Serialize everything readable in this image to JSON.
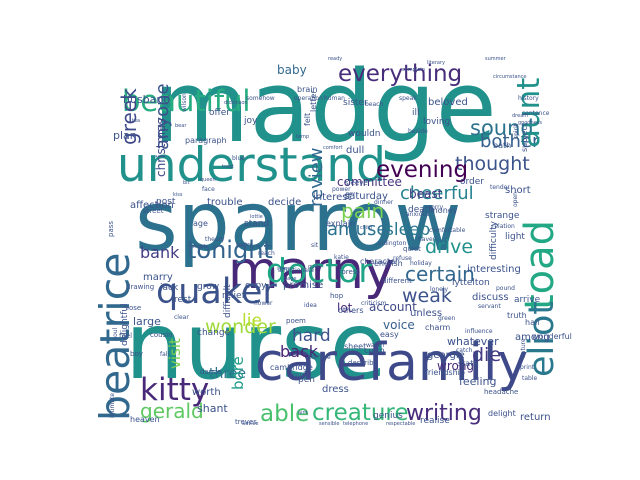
{
  "word_cloud": {
    "words": [
      {
        "text": "madge",
        "color": "#21918c"
      },
      {
        "text": "sparrow",
        "color": "#2c728e"
      },
      {
        "text": "nurse",
        "color": "#21918c"
      },
      {
        "text": "marny",
        "color": "#482878"
      },
      {
        "text": "understand",
        "color": "#21918c"
      },
      {
        "text": "carefamily",
        "color": "#3e4989"
      },
      {
        "text": "beautiful",
        "color": "#27ad81"
      },
      {
        "text": "beatrice",
        "color": "#31688e"
      },
      {
        "text": "kitty",
        "color": "#482878"
      },
      {
        "text": "everything",
        "color": "#472d7b"
      },
      {
        "text": "toad",
        "color": "#22a884"
      },
      {
        "text": "quaker",
        "color": "#3b528b"
      },
      {
        "text": "doctor",
        "color": "#20a486"
      },
      {
        "text": "eliot",
        "color": "#2a788e"
      },
      {
        "text": "tonight",
        "color": "#33638d"
      },
      {
        "text": "creature",
        "color": "#35b779"
      },
      {
        "text": "able",
        "color": "#4ac16d"
      },
      {
        "text": "writing",
        "color": "#472d7b"
      },
      {
        "text": "gerald",
        "color": "#5ec962"
      },
      {
        "text": "certain",
        "color": "#31688e"
      },
      {
        "text": "sound",
        "color": "#2c728e"
      },
      {
        "text": "thought",
        "color": "#3b528b"
      },
      {
        "text": "cheerful",
        "color": "#26828e"
      },
      {
        "text": "bother",
        "color": "#355f8d"
      },
      {
        "text": "evening",
        "color": "#440154"
      },
      {
        "text": "aunt",
        "color": "#21918c"
      },
      {
        "text": "greek",
        "color": "#3e4989"
      },
      {
        "text": "anyone",
        "color": "#3b528b"
      },
      {
        "text": "pain",
        "color": "#7ad151"
      },
      {
        "text": "amuse",
        "color": "#2c728e"
      },
      {
        "text": "sleep",
        "color": "#2a788e"
      },
      {
        "text": "drive",
        "color": "#21918c"
      },
      {
        "text": "weak",
        "color": "#3b528b"
      },
      {
        "text": "wonder",
        "color": "#a0da39"
      },
      {
        "text": "bank",
        "color": "#433e85"
      },
      {
        "text": "lie",
        "color": "#b5de2b"
      },
      {
        "text": "review",
        "color": "#31688e"
      },
      {
        "text": "hard",
        "color": "#3b528b"
      },
      {
        "text": "back",
        "color": "#482475"
      },
      {
        "text": "die",
        "color": "#443a83"
      },
      {
        "text": "visit",
        "color": "#7ad151"
      },
      {
        "text": "three",
        "color": "#2c728e"
      },
      {
        "text": "bore",
        "color": "#1f9e89"
      },
      {
        "text": "baby",
        "color": "#31688e"
      },
      {
        "text": "lot",
        "color": "#482878"
      },
      {
        "text": "account",
        "color": "#3e4989"
      },
      {
        "text": "voice",
        "color": "#355f8d"
      },
      {
        "text": "wrong",
        "color": "#472d7b"
      },
      {
        "text": "committee",
        "color": "#46327e"
      },
      {
        "text": "beast",
        "color": "#443a83"
      },
      {
        "text": "christmas",
        "color": "#3e4989"
      },
      {
        "text": "affection",
        "color": "#3b528b"
      },
      {
        "text": "trouble",
        "color": "#3b528b"
      },
      {
        "text": "decide",
        "color": "#3b528b"
      },
      {
        "text": "interest",
        "color": "#3b528b"
      },
      {
        "text": "saturday",
        "color": "#3b528b"
      },
      {
        "text": "husband",
        "color": "#3b528b"
      },
      {
        "text": "plan",
        "color": "#3b528b"
      },
      {
        "text": "large",
        "color": "#3b528b"
      },
      {
        "text": "marry",
        "color": "#3b528b"
      },
      {
        "text": "jack",
        "color": "#3b528b"
      },
      {
        "text": "grow",
        "color": "#3b528b"
      },
      {
        "text": "relief",
        "color": "#3b528b"
      },
      {
        "text": "copy",
        "color": "#3b528b"
      },
      {
        "text": "post",
        "color": "#3b528b"
      },
      {
        "text": "stand",
        "color": "#3b528b"
      },
      {
        "text": "promise",
        "color": "#3b528b"
      },
      {
        "text": "rest",
        "color": "#3b528b"
      },
      {
        "text": "difficult",
        "color": "#3b528b"
      },
      {
        "text": "change",
        "color": "#3b528b"
      },
      {
        "text": "delightful",
        "color": "#3b528b"
      },
      {
        "text": "shant",
        "color": "#3b528b"
      },
      {
        "text": "worth",
        "color": "#3b528b"
      },
      {
        "text": "treves",
        "color": "#3b528b"
      },
      {
        "text": "heaven",
        "color": "#3b528b"
      },
      {
        "text": "dress",
        "color": "#3b528b"
      },
      {
        "text": "pen",
        "color": "#3b528b"
      },
      {
        "text": "genius",
        "color": "#3b528b"
      },
      {
        "text": "realise",
        "color": "#3b528b"
      },
      {
        "text": "delight",
        "color": "#3b528b"
      },
      {
        "text": "return",
        "color": "#3b528b"
      },
      {
        "text": "feeling",
        "color": "#3b528b"
      },
      {
        "text": "georgie",
        "color": "#3b528b"
      },
      {
        "text": "whatever",
        "color": "#3b528b"
      },
      {
        "text": "among",
        "color": "#3b528b"
      },
      {
        "text": "hall",
        "color": "#3b528b"
      },
      {
        "text": "arrive",
        "color": "#3b528b"
      },
      {
        "text": "truth",
        "color": "#3b528b"
      },
      {
        "text": "wonderful",
        "color": "#3b528b"
      },
      {
        "text": "unless",
        "color": "#3b528b"
      },
      {
        "text": "discuss",
        "color": "#3b528b"
      },
      {
        "text": "lyttelton",
        "color": "#3b528b"
      },
      {
        "text": "interesting",
        "color": "#3b528b"
      },
      {
        "text": "light",
        "color": "#3b528b"
      },
      {
        "text": "difficulty",
        "color": "#3b528b"
      },
      {
        "text": "short",
        "color": "#3b528b"
      },
      {
        "text": "strange",
        "color": "#3b528b"
      },
      {
        "text": "bath",
        "color": "#3b528b"
      },
      {
        "text": "subject",
        "color": "#3b528b"
      },
      {
        "text": "order",
        "color": "#3b528b"
      },
      {
        "text": "death",
        "color": "#3b528b"
      },
      {
        "text": "money",
        "color": "#3b528b"
      },
      {
        "text": "quiet",
        "color": "#3b528b"
      },
      {
        "text": "crum",
        "color": "#3b528b"
      },
      {
        "text": "charm",
        "color": "#3b528b"
      },
      {
        "text": "easy",
        "color": "#3b528b"
      },
      {
        "text": "sheet",
        "color": "#3b528b"
      },
      {
        "text": "others",
        "color": "#3b528b"
      },
      {
        "text": "friendship",
        "color": "#3b528b"
      },
      {
        "text": "state",
        "color": "#3b528b"
      },
      {
        "text": "cambridge",
        "color": "#3b528b"
      },
      {
        "text": "explain",
        "color": "#3b528b"
      },
      {
        "text": "dull",
        "color": "#3b528b"
      },
      {
        "text": "wouldn",
        "color": "#3b528b"
      },
      {
        "text": "loving",
        "color": "#3b528b"
      },
      {
        "text": "beloved",
        "color": "#3b528b"
      },
      {
        "text": "sister",
        "color": "#3b528b"
      },
      {
        "text": "brain",
        "color": "#3b528b"
      },
      {
        "text": "ill",
        "color": "#3b528b"
      },
      {
        "text": "joy",
        "color": "#3b528b"
      },
      {
        "text": "offer",
        "color": "#3b528b"
      },
      {
        "text": "felt",
        "color": "#3b528b"
      },
      {
        "text": "letter",
        "color": "#3b528b"
      },
      {
        "text": "paragraph",
        "color": "#3b528b"
      },
      {
        "text": "character",
        "color": "#3b528b"
      },
      {
        "text": "different",
        "color": "#3b528b"
      },
      {
        "text": "english",
        "color": "#3b528b"
      },
      {
        "text": "forest",
        "color": "#3b528b"
      },
      {
        "text": "sleeve",
        "color": "#3b528b"
      },
      {
        "text": "power",
        "color": "#3b528b"
      },
      {
        "text": "age",
        "color": "#3b528b"
      },
      {
        "text": "street",
        "color": "#3b528b"
      },
      {
        "text": "pass",
        "color": "#3b528b"
      },
      {
        "text": "drawing",
        "color": "#3b528b"
      },
      {
        "text": "lose",
        "color": "#3b528b"
      },
      {
        "text": "feel",
        "color": "#3b528b"
      },
      {
        "text": "boy",
        "color": "#3b528b"
      },
      {
        "text": "fall",
        "color": "#3b528b"
      },
      {
        "text": "cousin",
        "color": "#3b528b"
      },
      {
        "text": "clear",
        "color": "#3b528b"
      },
      {
        "text": "flower",
        "color": "#3b528b"
      },
      {
        "text": "hop",
        "color": "#3b528b"
      },
      {
        "text": "idea",
        "color": "#3b528b"
      },
      {
        "text": "criticism",
        "color": "#3b528b"
      },
      {
        "text": "describe",
        "color": "#3b528b"
      },
      {
        "text": "terrible",
        "color": "#3b528b"
      },
      {
        "text": "poem",
        "color": "#3b528b"
      },
      {
        "text": "dance",
        "color": "#3b528b"
      },
      {
        "text": "headache",
        "color": "#3b528b"
      },
      {
        "text": "ready",
        "color": "#3b528b"
      },
      {
        "text": "literary",
        "color": "#3b528b"
      },
      {
        "text": "summer",
        "color": "#3b528b"
      },
      {
        "text": "circumstance",
        "color": "#3b528b"
      },
      {
        "text": "sentence",
        "color": "#3b528b"
      },
      {
        "text": "wilson",
        "color": "#3b528b"
      },
      {
        "text": "comfort",
        "color": "#3b528b"
      },
      {
        "text": "aldington",
        "color": "#3b528b"
      },
      {
        "text": "holiday",
        "color": "#3b528b"
      },
      {
        "text": "intimate",
        "color": "#3b528b"
      },
      {
        "text": "soul",
        "color": "#3b528b"
      },
      {
        "text": "dickinson",
        "color": "#3b528b"
      },
      {
        "text": "affectionate",
        "color": "#3b528b"
      },
      {
        "text": "theory",
        "color": "#3b528b"
      },
      {
        "text": "pound",
        "color": "#3b528b"
      },
      {
        "text": "history",
        "color": "#3b528b"
      },
      {
        "text": "spirit",
        "color": "#3b528b"
      },
      {
        "text": "advice",
        "color": "#3b528b"
      },
      {
        "text": "sensible",
        "color": "#3b528b"
      },
      {
        "text": "telephone",
        "color": "#3b528b"
      },
      {
        "text": "respectable",
        "color": "#3b528b"
      },
      {
        "text": "somehow",
        "color": "#3b528b"
      },
      {
        "text": "operation",
        "color": "#3b528b"
      },
      {
        "text": "complain",
        "color": "#3b528b"
      },
      {
        "text": "beside",
        "color": "#3b528b"
      },
      {
        "text": "beach",
        "color": "#3b528b"
      },
      {
        "text": "speak",
        "color": "#3b528b"
      },
      {
        "text": "temp",
        "color": "#3b528b"
      },
      {
        "text": "human",
        "color": "#3b528b"
      },
      {
        "text": "blue",
        "color": "#3b528b"
      },
      {
        "text": "treat",
        "color": "#3b528b"
      },
      {
        "text": "queen",
        "color": "#3b528b"
      },
      {
        "text": "dinner",
        "color": "#3b528b"
      },
      {
        "text": "tender",
        "color": "#3b528b"
      },
      {
        "text": "high",
        "color": "#3b528b"
      },
      {
        "text": "sorry",
        "color": "#3b528b"
      },
      {
        "text": "anxious",
        "color": "#3b528b"
      },
      {
        "text": "refuse",
        "color": "#3b528b"
      },
      {
        "text": "haven",
        "color": "#3b528b"
      },
      {
        "text": "comfortable",
        "color": "#3b528b"
      },
      {
        "text": "relation",
        "color": "#3b528b"
      },
      {
        "text": "open",
        "color": "#3b528b"
      },
      {
        "text": "green",
        "color": "#3b528b"
      },
      {
        "text": "watch",
        "color": "#3b528b"
      },
      {
        "text": "catch",
        "color": "#3b528b"
      },
      {
        "text": "influence",
        "color": "#3b528b"
      },
      {
        "text": "note",
        "color": "#3b528b"
      },
      {
        "text": "aint",
        "color": "#3b528b"
      },
      {
        "text": "nature",
        "color": "#3b528b"
      },
      {
        "text": "print",
        "color": "#3b528b"
      },
      {
        "text": "table",
        "color": "#3b528b"
      },
      {
        "text": "servant",
        "color": "#3b528b"
      },
      {
        "text": "lonely",
        "color": "#3b528b"
      },
      {
        "text": "sit",
        "color": "#3b528b"
      },
      {
        "text": "share",
        "color": "#3b528b"
      },
      {
        "text": "page",
        "color": "#3b528b"
      },
      {
        "text": "katie",
        "color": "#3b528b"
      },
      {
        "text": "reach",
        "color": "#3b528b"
      },
      {
        "text": "poetry",
        "color": "#3b528b"
      },
      {
        "text": "pay",
        "color": "#3b528b"
      },
      {
        "text": "face",
        "color": "#3b528b"
      },
      {
        "text": "kiss",
        "color": "#3b528b"
      },
      {
        "text": "tea",
        "color": "#3b528b"
      },
      {
        "text": "bear",
        "color": "#3b528b"
      },
      {
        "text": "dream",
        "color": "#3b528b"
      },
      {
        "text": "goodness",
        "color": "#3b528b"
      },
      {
        "text": "bit",
        "color": "#3b528b"
      },
      {
        "text": "child",
        "color": "#3b528b"
      },
      {
        "text": "lottie",
        "color": "#3b528b"
      },
      {
        "text": "shock",
        "color": "#3b528b"
      },
      {
        "text": "guilty",
        "color": "#3b528b"
      },
      {
        "text": "horse",
        "color": "#3b528b"
      },
      {
        "text": "pretty",
        "color": "#3b528b"
      }
    ]
  }
}
